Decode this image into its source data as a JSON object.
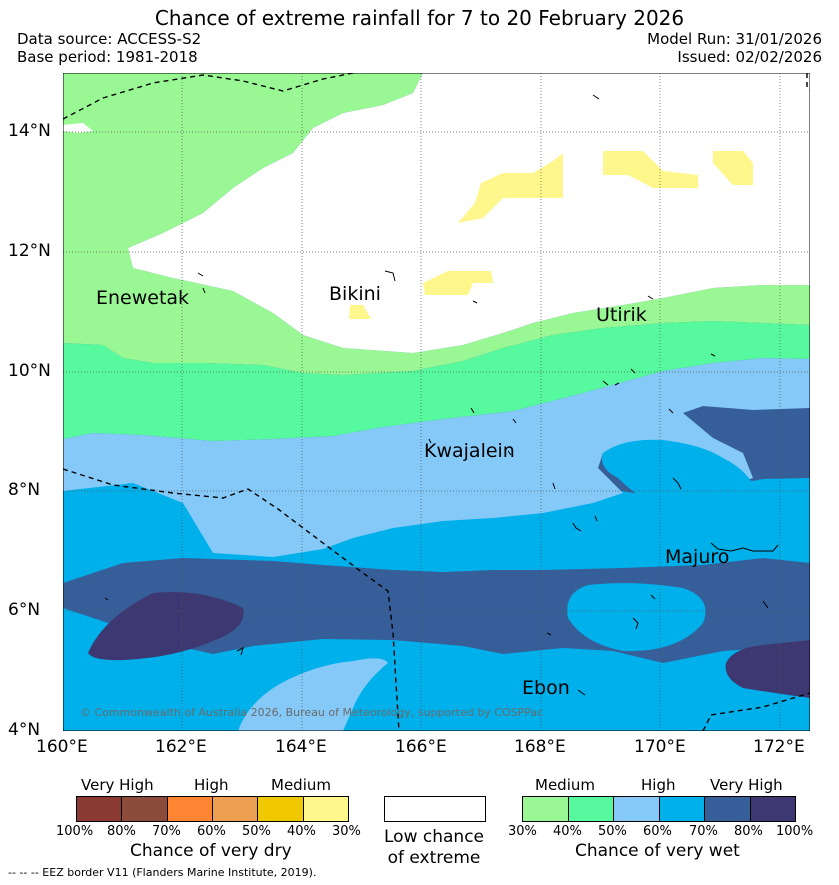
{
  "title": "Chance of extreme rainfall for 7 to 20 February 2026",
  "header": {
    "data_source": "Data source: ACCESS-S2",
    "base_period": "Base period: 1981-2018",
    "model_run": "Model Run: 31/01/2026",
    "issued": "Issued: 02/02/2026"
  },
  "axes": {
    "lat_labels": [
      "14°N",
      "12°N",
      "10°N",
      "8°N",
      "6°N",
      "4°N"
    ],
    "lon_labels": [
      "160°E",
      "162°E",
      "164°E",
      "166°E",
      "168°E",
      "170°E",
      "172°E"
    ]
  },
  "places": {
    "enewetak": "Enewetak",
    "bikini": "Bikini",
    "utirik": "Utirik",
    "kwajalein": "Kwajalein",
    "majuro": "Majuro",
    "ebon": "Ebon"
  },
  "copyright": "© Commonwealth of Australia 2026, Bureau of Meteorology, supported by COSPPac",
  "legend": {
    "dry": {
      "heads": [
        "Very High",
        "High",
        "Medium"
      ],
      "ticks": [
        "100%",
        "80%",
        "70%",
        "60%",
        "50%",
        "40%",
        "30%"
      ],
      "colors": [
        "#8b3a33",
        "#8b4c3c",
        "#ff8533",
        "#ec9f50",
        "#f0c800",
        "#fff78c"
      ],
      "caption": "Chance of very dry"
    },
    "low": {
      "line1": "Low chance",
      "line2": "of extreme",
      "color": "#ffffff"
    },
    "wet": {
      "heads": [
        "Medium",
        "High",
        "Very High"
      ],
      "ticks": [
        "30%",
        "40%",
        "50%",
        "60%",
        "70%",
        "80%",
        "100%"
      ],
      "colors": [
        "#99f893",
        "#57f99e",
        "#85c9f9",
        "#00b0eb",
        "#365f99",
        "#3d3872"
      ],
      "caption": "Chance of very wet"
    }
  },
  "footer": "--  --  -- EEZ border V11 (Flanders Marine Institute, 2019)."
}
